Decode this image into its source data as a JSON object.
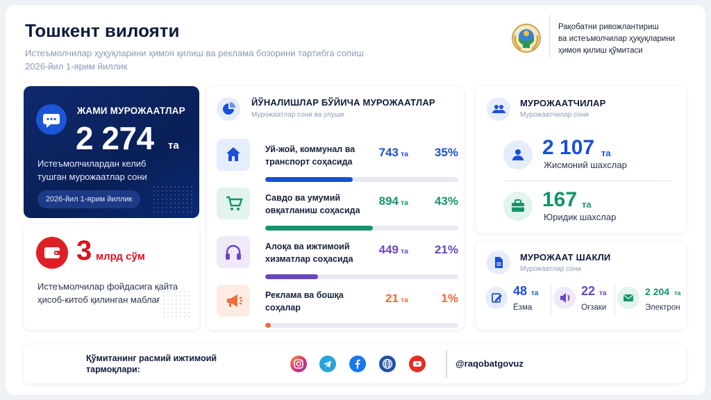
{
  "header": {
    "title": "Тошкент вилояти",
    "subtitle_line1": "Истеъмолчилар ҳуқуқларини ҳимоя қилиш ва реклама бозорини тартибга солиш",
    "subtitle_line2": "2026-йил 1-ярим йиллик",
    "committee_line1": "Рақобатни ривожлантириш",
    "committee_line2": "ва истеъмолчилар ҳуқуқларини",
    "committee_line3": "ҳимоя қилиш қўмитаси"
  },
  "total": {
    "label": "ЖАМИ МУРОЖААТЛАР",
    "value": "2 274",
    "unit": "та",
    "desc_line1": "Истеъмолчилардан келиб",
    "desc_line2": "тушган мурожаатлар сони",
    "period": "2026-йил 1-ярим йиллик"
  },
  "money": {
    "value": "3",
    "unit": "млрд сўм",
    "desc_line1": "Истеъмолчилар фойдасига қайта",
    "desc_line2": "ҳисоб-китоб қилинган маблағ"
  },
  "directions": {
    "title": "ЙЎНАЛИШЛАР БЎЙИЧА МУРОЖААТЛАР",
    "subtitle": "Мурожаатлар сони ва улуши",
    "unit": "та",
    "items": [
      {
        "label_line1": "Уй-жой, коммунал ва",
        "label_line2": "транспорт соҳасида",
        "value": "743",
        "percent": "35%",
        "share": 0.35,
        "color": "#1a4fd6",
        "icon": "home-icon"
      },
      {
        "label_line1": "Савдо ва умумий",
        "label_line2": "овқатланиш соҳасида",
        "value": "894",
        "percent": "43%",
        "share": 0.43,
        "color": "#14946a",
        "icon": "cart-icon"
      },
      {
        "label_line1": "Алоқа ва ижтимоий",
        "label_line2": "хизматлар соҳасида",
        "value": "449",
        "percent": "21%",
        "share": 0.21,
        "color": "#6a46c2",
        "icon": "headphones-icon"
      },
      {
        "label_line1": "Реклама ва бошқа",
        "label_line2": "соҳалар",
        "value": "21",
        "percent": "1%",
        "share": 0.01,
        "color": "#f06d3a",
        "icon": "megaphone-icon"
      }
    ]
  },
  "applicants": {
    "title": "МУРОЖААТЧИЛАР",
    "subtitle": "Мурожаатчилар сони",
    "unit": "та",
    "individuals_value": "2 107",
    "individuals_label": "Жисмоний шахслар",
    "legal_value": "167",
    "legal_label": "Юридик шахслар"
  },
  "form": {
    "title": "МУРОЖААТ ШАКЛИ",
    "subtitle": "Мурожаатлар сони",
    "unit": "та",
    "written_value": "48",
    "written_label": "Ёзма",
    "oral_value": "22",
    "oral_label": "Оғзаки",
    "electronic_value": "2 204",
    "electronic_label": "Электрон"
  },
  "footer": {
    "text_line1": "Қўмитанинг расмий ижтимоий",
    "text_line2": "тармоқлари:",
    "handle": "@raqobatgovuz",
    "icons": [
      "instagram-icon",
      "telegram-icon",
      "facebook-icon",
      "website-icon",
      "youtube-icon"
    ]
  },
  "colors": {
    "navy": "#0f1b3d",
    "blue": "#1a4fd6",
    "green": "#14946a",
    "purple": "#6a46c2",
    "orange": "#f06d3a",
    "red": "#d9141c"
  }
}
